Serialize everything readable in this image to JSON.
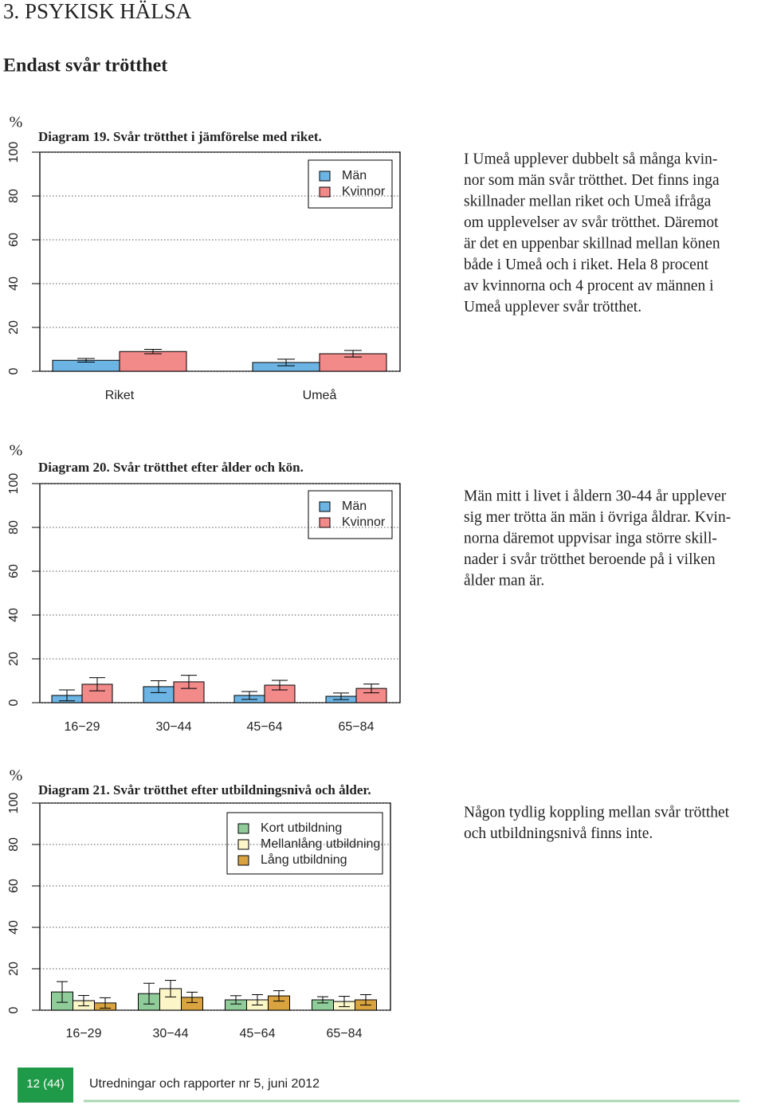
{
  "heading": "3. PSYKISK HÄLSA",
  "subheading": "Endast svår trötthet",
  "chart_data": [
    {
      "type": "bar",
      "title": "Diagram 19. Svår trötthet i jämförelse med riket.",
      "ylabel": "%",
      "categories": [
        "Riket",
        "Umeå"
      ],
      "series": [
        {
          "name": "Män",
          "color": "#6cb4e4",
          "values": [
            5,
            4
          ],
          "errors": [
            0.8,
            1.5
          ]
        },
        {
          "name": "Kvinnor",
          "color": "#f28a8a",
          "values": [
            9,
            8
          ],
          "errors": [
            1,
            1.5
          ]
        }
      ],
      "ylim": [
        0,
        100
      ],
      "yticks": [
        0,
        20,
        40,
        60,
        80,
        100
      ],
      "grid": true,
      "legend": "top right"
    },
    {
      "type": "bar",
      "title": "Diagram 20. Svår trötthet efter ålder och kön.",
      "ylabel": "%",
      "categories": [
        "16−29",
        "30−44",
        "45−64",
        "65−84"
      ],
      "series": [
        {
          "name": "Män",
          "color": "#6cb4e4",
          "values": [
            3.3,
            7.3,
            3.3,
            2.9
          ],
          "errors": [
            2.5,
            2.7,
            1.8,
            1.5
          ]
        },
        {
          "name": "Kvinnor",
          "color": "#f28a8a",
          "values": [
            8.4,
            9.5,
            8,
            6.5
          ],
          "errors": [
            3,
            3,
            2.2,
            2
          ]
        }
      ],
      "ylim": [
        0,
        100
      ],
      "yticks": [
        0,
        20,
        40,
        60,
        80,
        100
      ],
      "grid": true,
      "legend": "top right"
    },
    {
      "type": "bar",
      "title": "Diagram 21. Svår trötthet efter utbildningsnivå och ålder.",
      "ylabel": "%",
      "categories": [
        "16−29",
        "30−44",
        "45−64",
        "65−84"
      ],
      "series": [
        {
          "name": "Kort utbildning",
          "color": "#8fcc9a",
          "values": [
            8.8,
            8,
            5,
            5
          ],
          "errors": [
            5,
            5,
            2,
            1.5
          ]
        },
        {
          "name": "Mellanlång utbildning",
          "color": "#fbf5c8",
          "values": [
            4.6,
            10.4,
            5,
            4.2
          ],
          "errors": [
            2.5,
            4,
            2.5,
            2.5
          ]
        },
        {
          "name": "Lång utbildning",
          "color": "#d9a440",
          "values": [
            3.5,
            6.2,
            6.9,
            5
          ],
          "errors": [
            2.5,
            2.5,
            2.5,
            2.5
          ]
        }
      ],
      "ylim": [
        0,
        100
      ],
      "yticks": [
        0,
        20,
        40,
        60,
        80,
        100
      ],
      "grid": true,
      "legend": "top right"
    }
  ],
  "paragraphs": [
    [
      "I Umeå upplever dubbelt så många kvin-",
      "nor som män svår trötthet. Det finns inga",
      "skillnader mellan riket och Umeå ifråga",
      "om upplevelser av svår trötthet. Däremot",
      "är det en uppenbar skillnad mellan könen",
      "både i Umeå och i riket. Hela 8 procent",
      "av kvinnorna och 4 procent av männen i",
      "Umeå upplever svår trötthet."
    ],
    [
      "Män mitt i livet i åldern 30-44 år upplever",
      "sig mer trötta än män i övriga åldrar. Kvin-",
      "norna däremot uppvisar inga större skill-",
      "nader i svår trötthet beroende på i vilken",
      "ålder man är."
    ],
    [
      "Någon tydlig koppling mellan svår trötthet",
      "och utbildningsnivå finns inte."
    ]
  ],
  "footer": {
    "page": "12 (44)",
    "publication": "Utredningar och rapporter nr 5, juni 2012"
  }
}
